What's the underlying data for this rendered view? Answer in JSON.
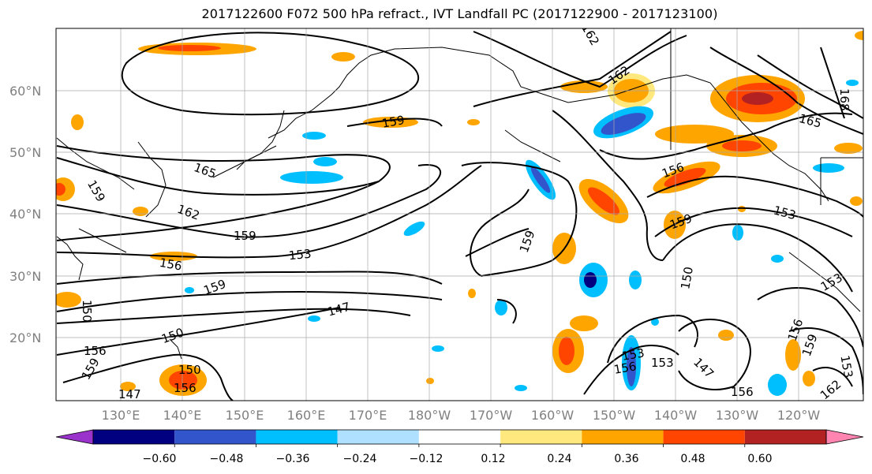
{
  "title": "2017122600 F072 500 hPa refract., IVT Landfall PC (2017122900 - 2017123100)",
  "lat_labels": [
    "60°N",
    "50°N",
    "40°N",
    "30°N",
    "20°N"
  ],
  "lon_labels": [
    "130°E",
    "140°E",
    "150°E",
    "160°E",
    "170°E",
    "180°W",
    "170°W",
    "160°W",
    "150°W",
    "140°W",
    "130°W",
    "120°W"
  ],
  "colorbar": {
    "colors": [
      "#9933cc",
      "#000080",
      "#3355cc",
      "#00bfff",
      "#b0e0ff",
      "#ffffff",
      "#ffe97f",
      "#ffa500",
      "#ff4500",
      "#b22222",
      "#ff85b0"
    ],
    "tick_labels": [
      "−0.60",
      "−0.48",
      "−0.36",
      "−0.24",
      "−0.12",
      "0.12",
      "0.24",
      "0.36",
      "0.48",
      "0.60"
    ]
  },
  "contour_labels": [
    "162",
    "165",
    "168",
    "159",
    "165",
    "162",
    "159",
    "156",
    "153",
    "159",
    "159",
    "156",
    "159",
    "153",
    "150",
    "147",
    "150",
    "156",
    "153",
    "156",
    "153",
    "147",
    "156",
    "156",
    "159",
    "153",
    "162",
    "153",
    "159",
    "150",
    "159",
    "156",
    "162",
    "150",
    "147"
  ]
}
